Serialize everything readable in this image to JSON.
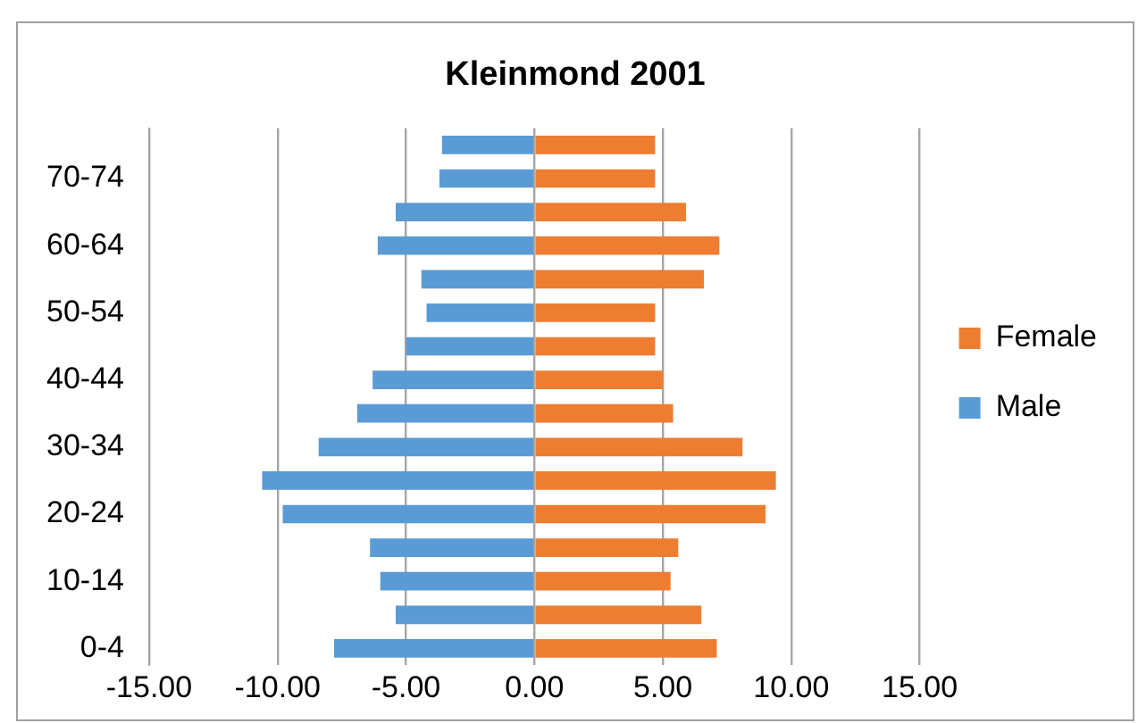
{
  "chart_data": {
    "type": "bar",
    "title": "Kleinmond 2001",
    "orientation": "horizontal",
    "stacked": true,
    "categories": [
      null,
      "70-74",
      null,
      "60-64",
      null,
      "50-54",
      null,
      "40-44",
      null,
      "30-34",
      null,
      "20-24",
      null,
      "10-14",
      null,
      "0-4"
    ],
    "series": [
      {
        "name": "Male",
        "color": "#5b9bd5",
        "values": [
          -3.6,
          -3.7,
          -5.4,
          -6.1,
          -4.4,
          -4.2,
          -5.0,
          -6.3,
          -6.9,
          -8.4,
          -10.6,
          -9.8,
          -6.4,
          -6.0,
          -5.4,
          -7.8
        ]
      },
      {
        "name": "Female",
        "color": "#ed7d31",
        "values": [
          4.7,
          4.7,
          5.9,
          7.2,
          6.6,
          4.7,
          4.7,
          5.0,
          5.4,
          8.1,
          9.4,
          9.0,
          5.6,
          5.3,
          6.5,
          7.1
        ]
      }
    ],
    "xlim": [
      -15,
      15
    ],
    "xticks": [
      {
        "value": -15,
        "label": "-15.00"
      },
      {
        "value": -10,
        "label": "-10.00"
      },
      {
        "value": -5,
        "label": "-5.00"
      },
      {
        "value": 0,
        "label": "0.00"
      },
      {
        "value": 5,
        "label": "5.00"
      },
      {
        "value": 10,
        "label": "10.00"
      },
      {
        "value": 15,
        "label": "15.00"
      }
    ],
    "grid": "x",
    "legend": "right"
  }
}
